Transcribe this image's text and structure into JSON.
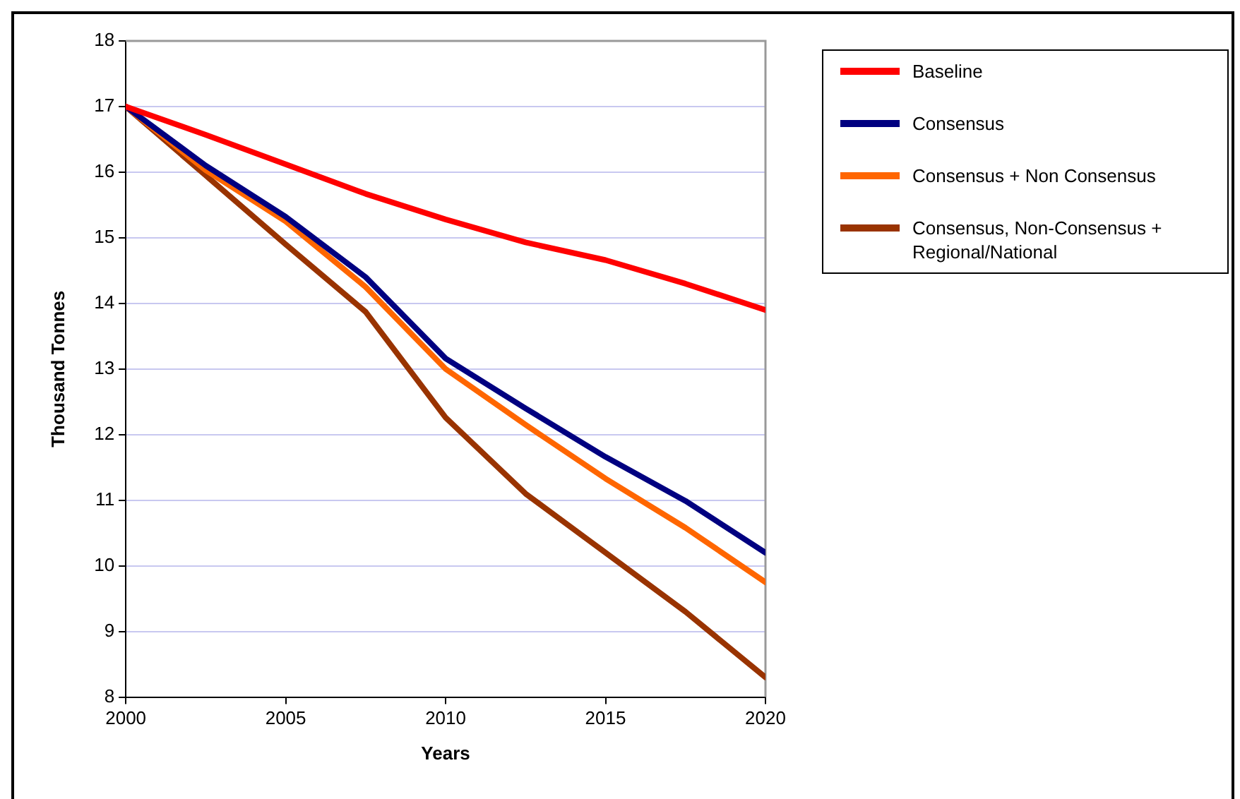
{
  "chart_data": {
    "type": "line",
    "xlabel": "Years",
    "ylabel": "Thousand Tonnes",
    "x": [
      2000,
      2002.5,
      2005,
      2007.5,
      2010,
      2012.5,
      2015,
      2017.5,
      2020
    ],
    "xlim": [
      2000,
      2020
    ],
    "xticks": [
      2000,
      2005,
      2010,
      2015,
      2020
    ],
    "ylim": [
      8,
      18
    ],
    "yticks": [
      8,
      9,
      10,
      11,
      12,
      13,
      14,
      15,
      16,
      17,
      18
    ],
    "grid": "y",
    "legend": "top right",
    "marker": "none",
    "line_style": "solid",
    "series": [
      {
        "name": "Baseline",
        "color": "#ff0000",
        "values": [
          17,
          16.57,
          16.12,
          15.67,
          15.28,
          14.93,
          14.66,
          14.3,
          13.9
        ]
      },
      {
        "name": "Consensus",
        "color": "#000080",
        "values": [
          17,
          16.1,
          15.32,
          14.4,
          13.16,
          12.4,
          11.66,
          10.99,
          10.2
        ]
      },
      {
        "name": "Consensus + Non Consensus",
        "color": "#ff6600",
        "values": [
          17,
          16.03,
          15.25,
          14.25,
          13.0,
          12.15,
          11.33,
          10.58,
          9.75
        ]
      },
      {
        "name": "Consensus, Non-Consensus + Regional/National",
        "color": "#993300",
        "values": [
          17,
          15.95,
          14.9,
          13.87,
          12.26,
          11.1,
          10.2,
          9.3,
          8.3
        ]
      }
    ]
  }
}
